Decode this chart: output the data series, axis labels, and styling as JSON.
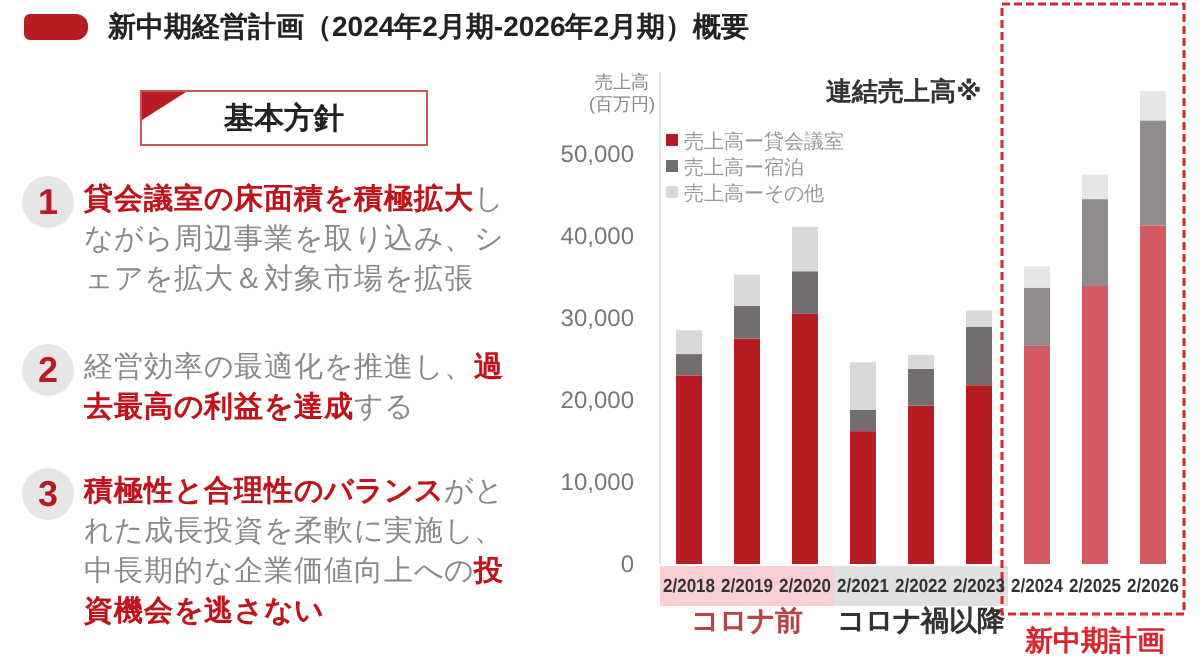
{
  "chart_data": [
    {
      "type": "other",
      "title": "新中期経営計画（2024年2月期-2026年2月期）概要",
      "subtitle": "基本方針",
      "annotations": [
        "1",
        "**貸会議室の床面積を積極拡大**しながら周辺事業を取り込み、シェアを拡大＆対象市場を拡張",
        "2",
        "経営効率の最適化を推進し、**過去最高の利益を達成**する",
        "3",
        "**積極性と合理性のバランス**がとれた成長投資を柔軟に実施し、中長期的な企業価値向上への**投資機会を逃さない**"
      ]
    },
    {
      "type": "bar",
      "stacked": true,
      "title": "連結売上高※",
      "ylabel": "売上高(百万円)",
      "legend": "top left",
      "categories": [
        "2/2018",
        "2/2019",
        "2/2020",
        "2/2021",
        "2/2022",
        "2/2023",
        "2/2024",
        "2/2025",
        "2/2026"
      ],
      "series": [
        {
          "name": "売上高ー貸会議室",
          "color": "#b71c23",
          "colors": [
            "#b71c23",
            "#b71c23",
            "#b71c23",
            "#b71c23",
            "#b71c23",
            "#b71c23",
            "#d35a60",
            "#d35a60",
            "#d35a60"
          ],
          "values": [
            23000,
            27500,
            30500,
            16200,
            19300,
            21800,
            26600,
            33900,
            41300
          ]
        },
        {
          "name": "売上高ー宿泊",
          "color": "#736e6e",
          "colors": [
            "#736e6e",
            "#736e6e",
            "#736e6e",
            "#736e6e",
            "#736e6e",
            "#736e6e",
            "#918c8c",
            "#918c8c",
            "#918c8c"
          ],
          "values": [
            2600,
            4000,
            5200,
            2600,
            4500,
            7100,
            7100,
            10600,
            12800
          ]
        },
        {
          "name": "売上高ーその他",
          "color": "#d9d9d9",
          "colors": [
            "#d9d9d9",
            "#d9d9d9",
            "#d9d9d9",
            "#d9d9d9",
            "#d9d9d9",
            "#d9d9d9",
            "#e6e6e6",
            "#e6e6e6",
            "#e6e6e6"
          ],
          "values": [
            2900,
            3800,
            5400,
            5800,
            1700,
            2000,
            2600,
            3000,
            3600
          ]
        }
      ],
      "ylim": [
        0,
        60000
      ],
      "yticks": [
        {
          "value": 0,
          "label": "0"
        },
        {
          "value": 10000,
          "label": "10,000"
        },
        {
          "value": 20000,
          "label": "20,000"
        },
        {
          "value": 30000,
          "label": "30,000"
        },
        {
          "value": 40000,
          "label": "40,000"
        },
        {
          "value": 50000,
          "label": "50,000"
        }
      ],
      "annotations": [
        "コロナ前",
        "コロナ禍以降",
        "新中期計画"
      ]
    }
  ]
}
